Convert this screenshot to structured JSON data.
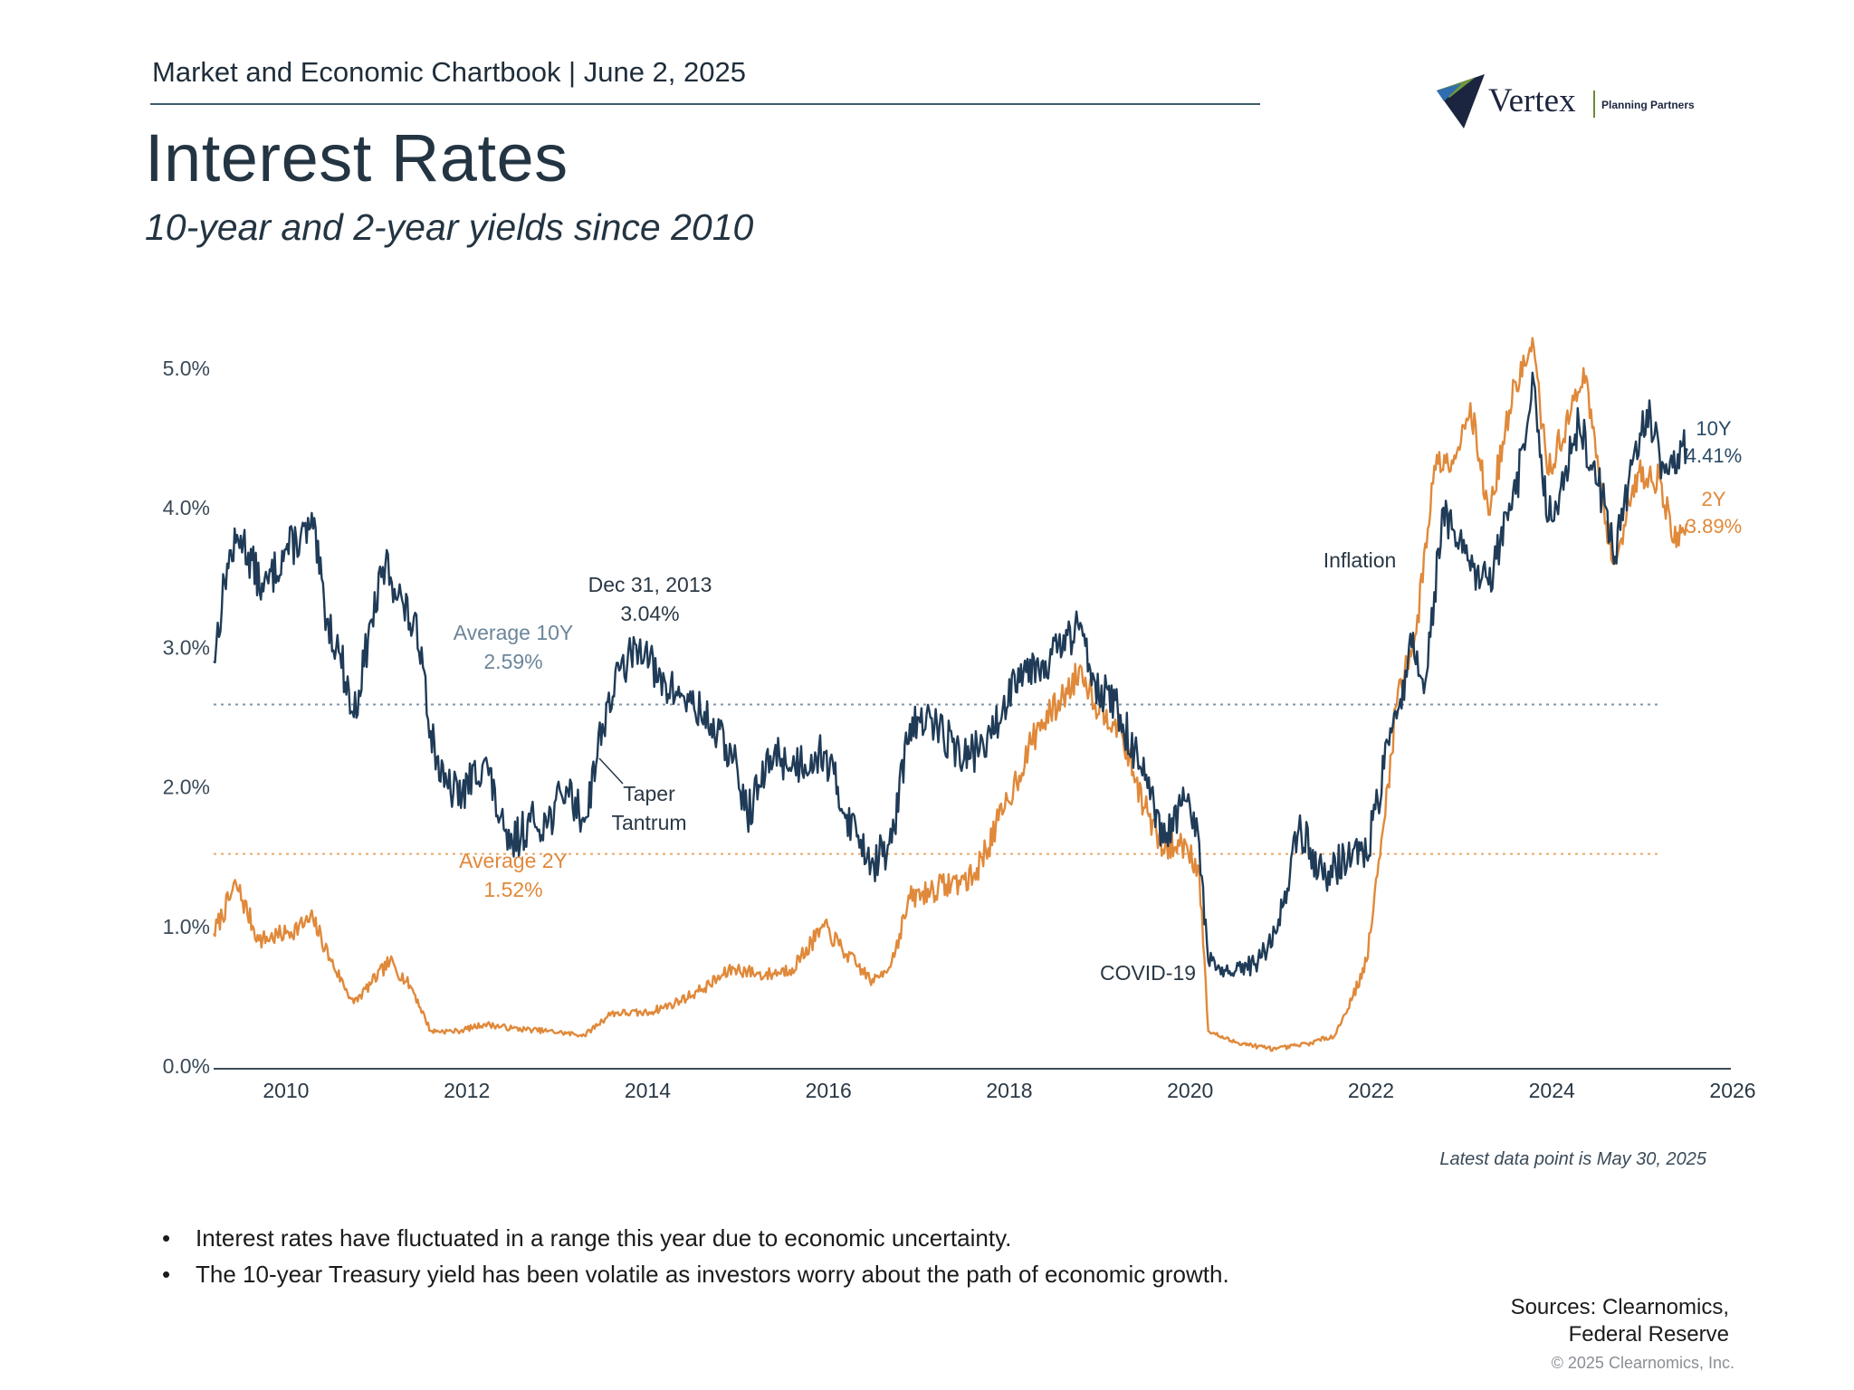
{
  "header": {
    "chartbook": "Market and Economic Chartbook | June 2, 2025",
    "title": "Interest Rates",
    "subtitle": "10-year and 2-year yields since 2010"
  },
  "logo": {
    "name": "Vertex",
    "tagline": "Planning Partners"
  },
  "footer": {
    "latest": "Latest data point is May 30, 2025",
    "bullets": [
      "Interest rates have fluctuated in a range this year due to economic uncertainty.",
      "The 10-year Treasury yield has been volatile as investors worry about the path of economic growth."
    ],
    "sources_line1": "Sources: Clearnomics,",
    "sources_line2": "Federal Reserve",
    "copyright": "© 2025 Clearnomics, Inc."
  },
  "chart_data": {
    "type": "line",
    "title": "Interest Rates",
    "subtitle": "10-year and 2-year yields since 2010",
    "xlabel": "",
    "ylabel": "",
    "xlim": [
      2009.2,
      2026.0
    ],
    "ylim": [
      0,
      5.2
    ],
    "x_ticks": [
      2010,
      2012,
      2014,
      2016,
      2018,
      2020,
      2022,
      2024,
      2026
    ],
    "x_tick_labels": [
      "2010",
      "2012",
      "2014",
      "2016",
      "2018",
      "2020",
      "2022",
      "2024",
      "2026"
    ],
    "y_ticks": [
      0,
      1,
      2,
      3,
      4,
      5
    ],
    "y_tick_labels": [
      "0.0%",
      "1.0%",
      "2.0%",
      "3.0%",
      "4.0%",
      "5.0%"
    ],
    "colors": {
      "10Y": "#1f3b57",
      "2Y": "#e0893a",
      "axis": "#3a4a58",
      "avg10": "#7f95a8",
      "avg2": "#e9a86a"
    },
    "series": [
      {
        "name": "10Y",
        "end_label": "10Y",
        "end_value_label": "4.41%",
        "points": [
          [
            2009.2,
            2.9
          ],
          [
            2009.35,
            3.6
          ],
          [
            2009.5,
            3.8
          ],
          [
            2009.75,
            3.4
          ],
          [
            2010.0,
            3.7
          ],
          [
            2010.3,
            3.85
          ],
          [
            2010.45,
            3.2
          ],
          [
            2010.6,
            2.95
          ],
          [
            2010.75,
            2.5
          ],
          [
            2010.95,
            3.2
          ],
          [
            2011.1,
            3.6
          ],
          [
            2011.3,
            3.3
          ],
          [
            2011.5,
            3.0
          ],
          [
            2011.6,
            2.4
          ],
          [
            2011.75,
            2.0
          ],
          [
            2011.95,
            1.95
          ],
          [
            2012.2,
            2.2
          ],
          [
            2012.45,
            1.55
          ],
          [
            2012.7,
            1.75
          ],
          [
            2012.9,
            1.75
          ],
          [
            2013.1,
            2.0
          ],
          [
            2013.3,
            1.75
          ],
          [
            2013.5,
            2.45
          ],
          [
            2013.7,
            2.85
          ],
          [
            2013.99,
            3.04
          ],
          [
            2014.1,
            2.75
          ],
          [
            2014.4,
            2.65
          ],
          [
            2014.7,
            2.45
          ],
          [
            2014.95,
            2.2
          ],
          [
            2015.1,
            1.8
          ],
          [
            2015.4,
            2.25
          ],
          [
            2015.6,
            2.15
          ],
          [
            2015.95,
            2.25
          ],
          [
            2016.2,
            1.8
          ],
          [
            2016.5,
            1.45
          ],
          [
            2016.7,
            1.6
          ],
          [
            2016.9,
            2.45
          ],
          [
            2017.2,
            2.45
          ],
          [
            2017.5,
            2.2
          ],
          [
            2017.8,
            2.35
          ],
          [
            2018.1,
            2.85
          ],
          [
            2018.4,
            2.9
          ],
          [
            2018.8,
            3.15
          ],
          [
            2018.95,
            2.75
          ],
          [
            2019.2,
            2.55
          ],
          [
            2019.5,
            2.05
          ],
          [
            2019.7,
            1.6
          ],
          [
            2019.95,
            1.9
          ],
          [
            2020.1,
            1.6
          ],
          [
            2020.2,
            0.75
          ],
          [
            2020.45,
            0.65
          ],
          [
            2020.75,
            0.75
          ],
          [
            2020.95,
            0.95
          ],
          [
            2021.2,
            1.7
          ],
          [
            2021.5,
            1.35
          ],
          [
            2021.8,
            1.55
          ],
          [
            2021.95,
            1.5
          ],
          [
            2022.2,
            2.3
          ],
          [
            2022.45,
            3.0
          ],
          [
            2022.6,
            2.75
          ],
          [
            2022.8,
            4.0
          ],
          [
            2022.95,
            3.75
          ],
          [
            2023.1,
            3.55
          ],
          [
            2023.3,
            3.45
          ],
          [
            2023.6,
            4.1
          ],
          [
            2023.8,
            4.9
          ],
          [
            2023.95,
            3.9
          ],
          [
            2024.1,
            4.15
          ],
          [
            2024.3,
            4.6
          ],
          [
            2024.6,
            4.0
          ],
          [
            2024.7,
            3.65
          ],
          [
            2024.9,
            4.35
          ],
          [
            2025.05,
            4.7
          ],
          [
            2025.25,
            4.25
          ],
          [
            2025.45,
            4.45
          ],
          [
            2025.5,
            4.41
          ]
        ]
      },
      {
        "name": "2Y",
        "end_label": "2Y",
        "end_value_label": "3.89%",
        "points": [
          [
            2009.2,
            0.95
          ],
          [
            2009.45,
            1.3
          ],
          [
            2009.7,
            0.9
          ],
          [
            2010.0,
            0.95
          ],
          [
            2010.3,
            1.05
          ],
          [
            2010.5,
            0.75
          ],
          [
            2010.75,
            0.45
          ],
          [
            2010.95,
            0.6
          ],
          [
            2011.15,
            0.75
          ],
          [
            2011.4,
            0.55
          ],
          [
            2011.6,
            0.25
          ],
          [
            2011.9,
            0.25
          ],
          [
            2012.2,
            0.3
          ],
          [
            2012.5,
            0.27
          ],
          [
            2012.9,
            0.25
          ],
          [
            2013.3,
            0.22
          ],
          [
            2013.6,
            0.38
          ],
          [
            2013.99,
            0.38
          ],
          [
            2014.3,
            0.45
          ],
          [
            2014.6,
            0.55
          ],
          [
            2014.95,
            0.7
          ],
          [
            2015.3,
            0.65
          ],
          [
            2015.6,
            0.7
          ],
          [
            2015.95,
            1.0
          ],
          [
            2016.2,
            0.8
          ],
          [
            2016.5,
            0.6
          ],
          [
            2016.7,
            0.75
          ],
          [
            2016.9,
            1.2
          ],
          [
            2017.3,
            1.3
          ],
          [
            2017.6,
            1.35
          ],
          [
            2017.95,
            1.85
          ],
          [
            2018.3,
            2.4
          ],
          [
            2018.6,
            2.65
          ],
          [
            2018.8,
            2.85
          ],
          [
            2018.95,
            2.6
          ],
          [
            2019.2,
            2.45
          ],
          [
            2019.5,
            1.85
          ],
          [
            2019.7,
            1.55
          ],
          [
            2019.95,
            1.6
          ],
          [
            2020.1,
            1.4
          ],
          [
            2020.2,
            0.25
          ],
          [
            2020.45,
            0.18
          ],
          [
            2020.75,
            0.14
          ],
          [
            2020.95,
            0.12
          ],
          [
            2021.3,
            0.16
          ],
          [
            2021.6,
            0.22
          ],
          [
            2021.8,
            0.5
          ],
          [
            2021.95,
            0.75
          ],
          [
            2022.1,
            1.5
          ],
          [
            2022.3,
            2.7
          ],
          [
            2022.5,
            3.1
          ],
          [
            2022.7,
            4.3
          ],
          [
            2022.95,
            4.4
          ],
          [
            2023.1,
            4.75
          ],
          [
            2023.3,
            3.95
          ],
          [
            2023.6,
            4.9
          ],
          [
            2023.8,
            5.15
          ],
          [
            2023.95,
            4.25
          ],
          [
            2024.2,
            4.65
          ],
          [
            2024.35,
            5.0
          ],
          [
            2024.6,
            3.9
          ],
          [
            2024.7,
            3.6
          ],
          [
            2024.95,
            4.25
          ],
          [
            2025.2,
            4.2
          ],
          [
            2025.35,
            3.75
          ],
          [
            2025.5,
            3.89
          ]
        ]
      }
    ],
    "reference_lines": [
      {
        "name": "Average 10Y",
        "value": 2.59,
        "label_line1": "Average 10Y",
        "label_line2": "2.59%"
      },
      {
        "name": "Average 2Y",
        "value": 1.52,
        "label_line1": "Average 2Y",
        "label_line2": "1.52%"
      }
    ],
    "annotations": [
      {
        "name": "dec-2013",
        "line1": "Dec 31, 2013",
        "line2": "3.04%"
      },
      {
        "name": "taper-tantrum",
        "line1": "Taper",
        "line2": "Tantrum"
      },
      {
        "name": "inflation",
        "line1": "Inflation"
      },
      {
        "name": "covid-19",
        "line1": "COVID-19"
      }
    ]
  }
}
